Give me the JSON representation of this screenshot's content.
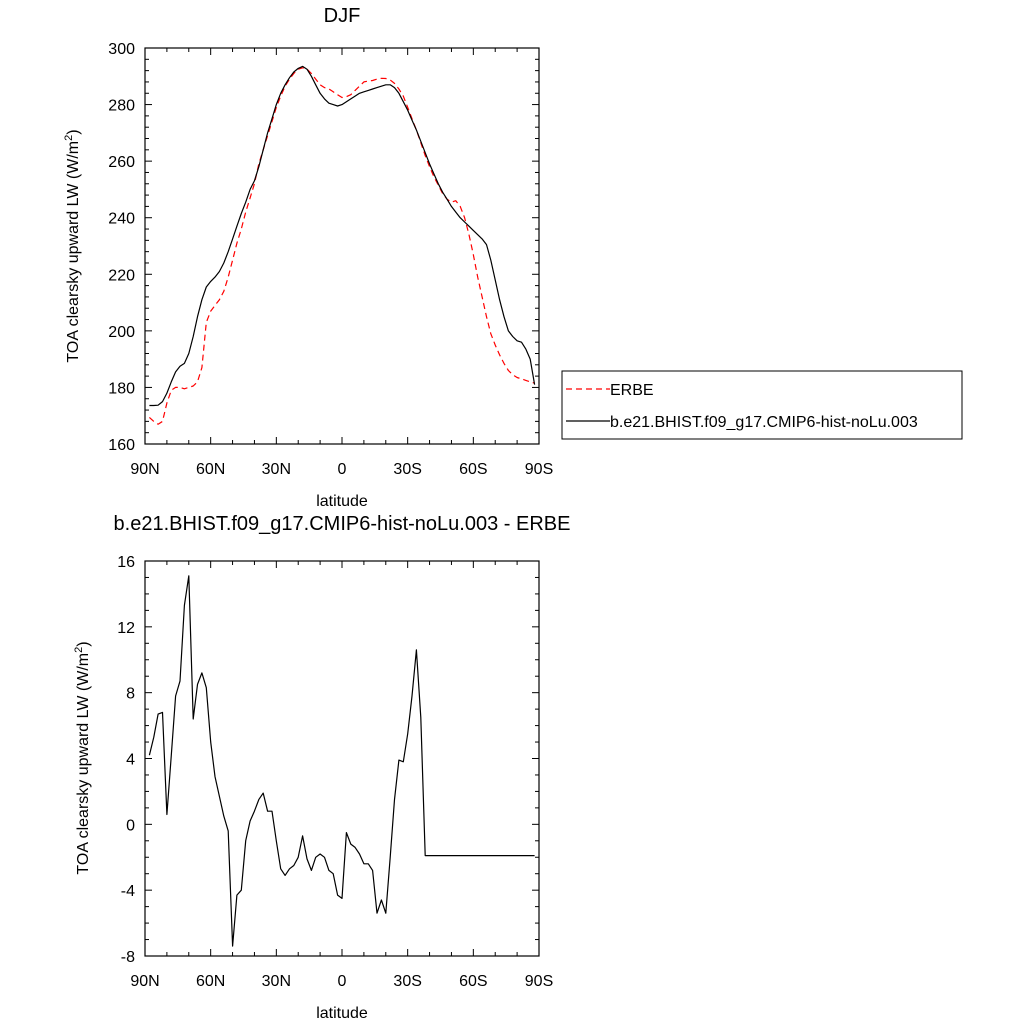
{
  "chart_data": [
    {
      "type": "line",
      "title": "DJF",
      "xlabel": "latitude",
      "ylabel": "TOA clearsky upward LW (W/m²)",
      "ylabel_main": "TOA clearsky upward LW (W/m",
      "ylabel_sup": "2",
      "ylabel_close": ")",
      "xlim": [
        90,
        -90
      ],
      "ylim": [
        160,
        300
      ],
      "x_ticks": [
        90,
        60,
        30,
        0,
        -30,
        -60,
        -90
      ],
      "x_tick_labels": [
        "90N",
        "60N",
        "30N",
        "0",
        "30S",
        "60S",
        "90S"
      ],
      "y_ticks": [
        160,
        180,
        200,
        220,
        240,
        260,
        280,
        300
      ],
      "y_tick_labels": [
        "160",
        "180",
        "200",
        "220",
        "240",
        "260",
        "280",
        "300"
      ],
      "legend_position": "right",
      "series": [
        {
          "name": "ERBE",
          "color": "#ff0000",
          "dash": true,
          "x": [
            88,
            86,
            84,
            82,
            80,
            78,
            76,
            74,
            72,
            70,
            68,
            66,
            64,
            62,
            60,
            58,
            56,
            54,
            52,
            50,
            48,
            46,
            44,
            42,
            40,
            38,
            36,
            34,
            32,
            30,
            28,
            26,
            24,
            22,
            20,
            18,
            16,
            14,
            12,
            10,
            8,
            6,
            4,
            2,
            0,
            -2,
            -4,
            -6,
            -8,
            -10,
            -12,
            -14,
            -16,
            -18,
            -20,
            -22,
            -24,
            -26,
            -28,
            -30,
            -32,
            -34,
            -36,
            -38,
            -40,
            -42,
            -44,
            -46,
            -48,
            -50,
            -52,
            -54,
            -56,
            -58,
            -60,
            -62,
            -64,
            -66,
            -68,
            -70,
            -72,
            -74,
            -76,
            -78,
            -80,
            -82,
            -84,
            -86,
            -88
          ],
          "values": [
            169.4,
            168.0,
            167.0,
            168.0,
            174.5,
            179.0,
            180.0,
            180.0,
            179.5,
            180.0,
            180.5,
            182.0,
            187.0,
            203.0,
            207.0,
            209.0,
            211.0,
            214.0,
            219.0,
            225.0,
            231.0,
            236.0,
            242.0,
            247.0,
            252.0,
            259.0,
            264.0,
            269.0,
            274.0,
            279.0,
            283.0,
            286.5,
            289.0,
            291.0,
            292.5,
            293.0,
            292.5,
            291.0,
            289.0,
            287.0,
            286.0,
            285.5,
            284.5,
            283.5,
            282.5,
            282.8,
            283.5,
            285.0,
            286.5,
            288.0,
            288.3,
            288.5,
            289.0,
            289.3,
            289.2,
            288.7,
            287.5,
            285.5,
            283.0,
            279.0,
            275.0,
            271.0,
            266.5,
            262.0,
            258.0,
            254.5,
            251.5,
            248.5,
            246.5,
            245.5,
            246.0,
            244.0,
            240.0,
            234.0,
            227.0,
            219.0,
            212.0,
            205.0,
            199.0,
            195.0,
            191.5,
            188.5,
            186.0,
            184.5,
            183.5,
            183.0,
            182.5,
            182.0,
            181.5
          ]
        },
        {
          "name": "b.e21.BHIST.f09_g17.CMIP6-hist-noLu.003",
          "color": "#000000",
          "dash": false,
          "x": [
            88,
            86,
            84,
            82,
            80,
            78,
            76,
            74,
            72,
            70,
            68,
            66,
            64,
            62,
            60,
            58,
            56,
            54,
            52,
            50,
            48,
            46,
            44,
            42,
            40,
            38,
            36,
            34,
            32,
            30,
            28,
            26,
            24,
            22,
            20,
            18,
            16,
            14,
            12,
            10,
            8,
            6,
            4,
            2,
            0,
            -2,
            -4,
            -6,
            -8,
            -10,
            -12,
            -14,
            -16,
            -18,
            -20,
            -22,
            -24,
            -26,
            -28,
            -30,
            -32,
            -34,
            -36,
            -38,
            -40,
            -42,
            -44,
            -46,
            -48,
            -50,
            -52,
            -54,
            -56,
            -58,
            -60,
            -62,
            -64,
            -66,
            -68,
            -70,
            -72,
            -74,
            -76,
            -78,
            -80,
            -82,
            -84,
            -86,
            -88
          ],
          "values": [
            173.6,
            173.6,
            173.7,
            175.0,
            178.0,
            182.0,
            185.5,
            187.5,
            188.5,
            192.0,
            198.0,
            205.0,
            211.0,
            215.5,
            217.5,
            219.0,
            221.0,
            224.0,
            228.0,
            232.5,
            237.0,
            241.5,
            245.5,
            250.0,
            253.0,
            258.0,
            264.0,
            270.0,
            275.0,
            280.0,
            284.0,
            287.0,
            289.5,
            291.5,
            292.8,
            293.5,
            292.5,
            290.0,
            287.0,
            284.0,
            282.0,
            280.5,
            280.0,
            279.5,
            280.0,
            281.0,
            282.0,
            283.0,
            284.0,
            284.5,
            285.0,
            285.5,
            286.0,
            286.5,
            287.0,
            287.0,
            286.0,
            284.0,
            281.0,
            278.0,
            274.5,
            271.0,
            267.0,
            263.0,
            259.0,
            255.5,
            252.0,
            249.0,
            246.5,
            244.0,
            242.0,
            240.0,
            238.5,
            237.0,
            235.5,
            234.0,
            232.5,
            230.5,
            225.0,
            218.0,
            211.0,
            205.0,
            200.0,
            198.0,
            196.5,
            196.0,
            193.5,
            190.0,
            181.0
          ]
        }
      ]
    },
    {
      "type": "line",
      "title": "b.e21.BHIST.f09_g17.CMIP6-hist-noLu.003 - ERBE",
      "xlabel": "latitude",
      "ylabel": "TOA clearsky upward LW (W/m²)",
      "ylabel_main": "TOA clearsky upward LW (W/m",
      "ylabel_sup": "2",
      "ylabel_close": ")",
      "xlim": [
        90,
        -90
      ],
      "ylim": [
        -8,
        16
      ],
      "x_ticks": [
        90,
        60,
        30,
        0,
        -30,
        -60,
        -90
      ],
      "x_tick_labels": [
        "90N",
        "60N",
        "30N",
        "0",
        "30S",
        "60S",
        "90S"
      ],
      "y_ticks": [
        -8,
        -4,
        0,
        4,
        8,
        12,
        16
      ],
      "y_tick_labels": [
        "-8",
        "-4",
        "0",
        "4",
        "8",
        "12",
        "16"
      ],
      "series": [
        {
          "color": "#000000",
          "dash": false,
          "x": [
            88,
            86,
            84,
            82,
            80,
            78,
            76,
            74,
            72,
            70,
            68,
            66,
            64,
            62,
            60,
            58,
            56,
            54,
            52,
            50,
            48,
            46,
            44,
            42,
            40,
            38,
            36,
            34,
            32,
            30,
            28,
            26,
            24,
            22,
            20,
            18,
            16,
            14,
            12,
            10,
            8,
            6,
            4,
            2,
            0,
            -2,
            -4,
            -6,
            -8,
            -10,
            -12,
            -14,
            -16,
            -18,
            -20,
            -22,
            -24,
            -26,
            -28,
            -30,
            -32,
            -34,
            -36,
            -38,
            -40,
            -42,
            -44,
            -46,
            -48,
            -50,
            -52,
            -54,
            -56,
            -58,
            -60,
            -62,
            -64,
            -66,
            -68,
            -70,
            -72,
            -74,
            -76,
            -78,
            -80,
            -82,
            -84,
            -86,
            -88
          ],
          "values": [
            4.2,
            5.3,
            6.7,
            6.8,
            0.6,
            4.2,
            7.8,
            8.7,
            13.3,
            15.1,
            6.4,
            8.5,
            9.2,
            8.3,
            5.0,
            2.9,
            1.7,
            0.5,
            -0.4,
            -7.4,
            -4.3,
            -4.0,
            -1.0,
            0.2,
            0.8,
            1.5,
            1.9,
            0.8,
            0.8,
            -1.0,
            -2.7,
            -3.1,
            -2.7,
            -2.5,
            -2.0,
            -0.7,
            -2.1,
            -2.8,
            -2.0,
            -1.8,
            -2.0,
            -2.8,
            -3.0,
            -4.3,
            -4.5,
            -0.5,
            -1.2,
            -1.4,
            -1.8,
            -2.4,
            -2.4,
            -2.8,
            -5.4,
            -4.6,
            -5.4,
            -2.0,
            1.5,
            3.9,
            3.8,
            5.5,
            7.8,
            10.6,
            6.5,
            -1.9,
            -1.9,
            -1.9,
            -1.9,
            -1.9,
            -1.9,
            -1.9,
            -1.9,
            -1.9,
            -1.9,
            -1.9,
            -1.9,
            -1.9,
            -1.9,
            -1.9,
            -1.9,
            -1.9,
            -1.9,
            -1.9,
            -1.9,
            -1.9,
            -1.9,
            -1.9,
            -1.9,
            -1.9,
            -1.9
          ]
        }
      ]
    }
  ]
}
